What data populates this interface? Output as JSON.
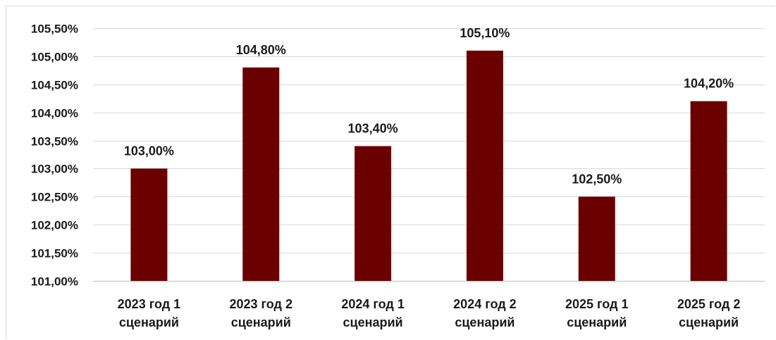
{
  "chart_data": {
    "type": "bar",
    "categories": [
      [
        "2023 год 1",
        "сценарий"
      ],
      [
        "2023 год 2",
        "сценарий"
      ],
      [
        "2024 год 1",
        "сценарий"
      ],
      [
        "2024 год 2",
        "сценарий"
      ],
      [
        "2025 год 1",
        "сценарий"
      ],
      [
        "2025 год 2",
        "сценарий"
      ]
    ],
    "values": [
      103.0,
      104.8,
      103.4,
      105.1,
      102.5,
      104.2
    ],
    "data_labels": [
      "103,00%",
      "104,80%",
      "103,40%",
      "105,10%",
      "102,50%",
      "104,20%"
    ],
    "ylim": [
      101.0,
      105.5
    ],
    "yticks": [
      101.0,
      101.5,
      102.0,
      102.5,
      103.0,
      103.5,
      104.0,
      104.5,
      105.0,
      105.5
    ],
    "ytick_labels": [
      "101,00%",
      "101,50%",
      "102,00%",
      "102,50%",
      "103,00%",
      "103,50%",
      "104,00%",
      "104,50%",
      "105,00%",
      "105,50%"
    ],
    "grid": true,
    "title": "",
    "xlabel": "",
    "ylabel": "",
    "colors": {
      "bar": "#6b0000",
      "grid": "#d9d9d9",
      "axis": "#bfbfbf",
      "text": "#1a1a1a"
    }
  }
}
